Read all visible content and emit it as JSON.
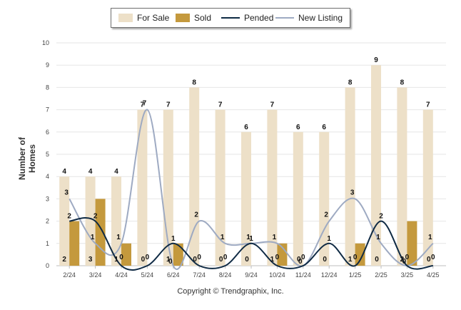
{
  "chart_data": {
    "type": "bar",
    "categories": [
      "2/24",
      "3/24",
      "4/24",
      "5/24",
      "6/24",
      "7/24",
      "8/24",
      "9/24",
      "10/24",
      "11/24",
      "12/24",
      "1/25",
      "2/25",
      "3/25",
      "4/25"
    ],
    "series": [
      {
        "name": "For Sale",
        "kind": "bar",
        "color": "#ede0c8",
        "values": [
          4,
          4,
          4,
          7,
          7,
          8,
          7,
          6,
          7,
          6,
          6,
          8,
          9,
          8,
          7
        ]
      },
      {
        "name": "Sold",
        "kind": "bar",
        "color": "#c4993d",
        "values": [
          2,
          3,
          1,
          0,
          1,
          0,
          0,
          0,
          1,
          0,
          0,
          1,
          0,
          2,
          0
        ]
      },
      {
        "name": "Pended",
        "kind": "line",
        "color": "#0f2a44",
        "values": [
          2,
          2,
          0,
          0,
          1,
          0,
          0,
          1,
          0,
          0,
          1,
          0,
          2,
          0,
          0
        ]
      },
      {
        "name": "New Listing",
        "kind": "line",
        "color": "#9eaac2",
        "values": [
          3,
          1,
          1,
          7,
          0,
          2,
          1,
          1,
          1,
          0,
          2,
          3,
          1,
          0,
          1
        ]
      }
    ],
    "ylabel": "Number of Homes",
    "xlabel": "",
    "ylim": [
      0,
      10
    ],
    "yticks": [
      0,
      1,
      2,
      3,
      4,
      5,
      6,
      7,
      8,
      9,
      10
    ],
    "grid": true,
    "legend": "top-center"
  },
  "footer": {
    "copyright": "Copyright © Trendgraphix, Inc."
  }
}
